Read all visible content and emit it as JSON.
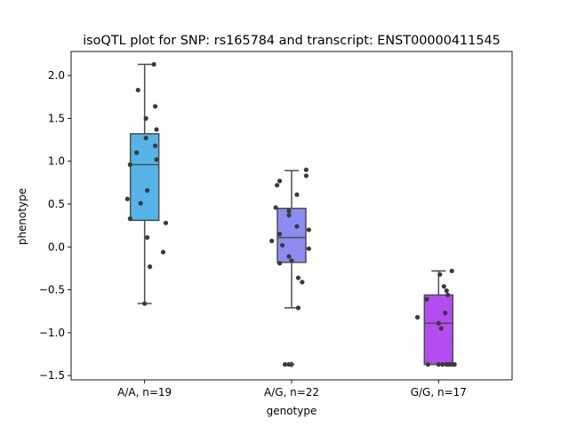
{
  "chart_data": {
    "type": "box",
    "title": "isoQTL plot for SNP: rs165784 and transcript: ENST00000411545",
    "xlabel": "genotype",
    "ylabel": "phenotype",
    "ylim": [
      -1.55,
      2.28
    ],
    "yticks": [
      -1.5,
      -1.0,
      -0.5,
      0.0,
      0.5,
      1.0,
      1.5,
      2.0
    ],
    "ytick_labels": [
      "−1.5",
      "−1.0",
      "−0.5",
      "0.0",
      "0.5",
      "1.0",
      "1.5",
      "2.0"
    ],
    "grid": false,
    "legend": "none",
    "categories": [
      "A/A, n=19",
      "A/G, n=22",
      "G/G, n=17"
    ],
    "boxes": [
      {
        "category": "A/A, n=19",
        "color": "#56b4e9",
        "q1": 0.31,
        "median": 0.96,
        "q3": 1.32,
        "whisker_low": -0.66,
        "whisker_high": 2.13,
        "outliers": []
      },
      {
        "category": "A/G, n=22",
        "color": "#8c8cf0",
        "q1": -0.18,
        "median": 0.11,
        "q3": 0.45,
        "whisker_low": -0.71,
        "whisker_high": 0.89,
        "outliers": [
          -1.37
        ]
      },
      {
        "category": "G/G, n=17",
        "color": "#b34df0",
        "q1": -1.37,
        "median": -0.89,
        "q3": -0.56,
        "whisker_low": -1.37,
        "whisker_high": -0.28,
        "outliers": []
      }
    ],
    "points": [
      {
        "group": 0,
        "x": 0.07,
        "y": 2.13
      },
      {
        "group": 0,
        "x": -0.05,
        "y": 1.83
      },
      {
        "group": 0,
        "x": 0.08,
        "y": 1.64
      },
      {
        "group": 0,
        "x": 0.01,
        "y": 1.5
      },
      {
        "group": 0,
        "x": 0.09,
        "y": 1.37
      },
      {
        "group": 0,
        "x": 0.01,
        "y": 1.27
      },
      {
        "group": 0,
        "x": 0.08,
        "y": 1.18
      },
      {
        "group": 0,
        "x": -0.06,
        "y": 1.1
      },
      {
        "group": 0,
        "x": 0.09,
        "y": 1.02
      },
      {
        "group": 0,
        "x": -0.11,
        "y": 0.96
      },
      {
        "group": 0,
        "x": 0.02,
        "y": 0.66
      },
      {
        "group": 0,
        "x": -0.13,
        "y": 0.56
      },
      {
        "group": 0,
        "x": -0.03,
        "y": 0.51
      },
      {
        "group": 0,
        "x": -0.11,
        "y": 0.33
      },
      {
        "group": 0,
        "x": 0.16,
        "y": 0.28
      },
      {
        "group": 0,
        "x": 0.02,
        "y": 0.11
      },
      {
        "group": 0,
        "x": 0.14,
        "y": -0.06
      },
      {
        "group": 0,
        "x": 0.04,
        "y": -0.23
      },
      {
        "group": 0,
        "x": 0.0,
        "y": -0.66
      },
      {
        "group": 1,
        "x": 0.11,
        "y": 0.9
      },
      {
        "group": 1,
        "x": 0.11,
        "y": 0.83
      },
      {
        "group": 1,
        "x": -0.09,
        "y": 0.77
      },
      {
        "group": 1,
        "x": -0.11,
        "y": 0.72
      },
      {
        "group": 1,
        "x": 0.04,
        "y": 0.61
      },
      {
        "group": 1,
        "x": -0.12,
        "y": 0.46
      },
      {
        "group": 1,
        "x": -0.02,
        "y": 0.42
      },
      {
        "group": 1,
        "x": -0.02,
        "y": 0.37
      },
      {
        "group": 1,
        "x": 0.04,
        "y": 0.24
      },
      {
        "group": 1,
        "x": 0.13,
        "y": 0.2
      },
      {
        "group": 1,
        "x": -0.09,
        "y": 0.15
      },
      {
        "group": 1,
        "x": -0.15,
        "y": 0.07
      },
      {
        "group": 1,
        "x": -0.07,
        "y": 0.02
      },
      {
        "group": 1,
        "x": 0.13,
        "y": -0.02
      },
      {
        "group": 1,
        "x": -0.02,
        "y": -0.11
      },
      {
        "group": 1,
        "x": 0.0,
        "y": -0.16
      },
      {
        "group": 1,
        "x": -0.09,
        "y": -0.19
      },
      {
        "group": 1,
        "x": 0.05,
        "y": -0.36
      },
      {
        "group": 1,
        "x": 0.08,
        "y": -0.41
      },
      {
        "group": 1,
        "x": 0.05,
        "y": -0.71
      },
      {
        "group": 1,
        "x": -0.05,
        "y": -1.37
      },
      {
        "group": 1,
        "x": -0.02,
        "y": -1.37
      },
      {
        "group": 2,
        "x": 0.1,
        "y": -0.28
      },
      {
        "group": 2,
        "x": 0.01,
        "y": -0.32
      },
      {
        "group": 2,
        "x": 0.04,
        "y": -0.46
      },
      {
        "group": 2,
        "x": 0.06,
        "y": -0.51
      },
      {
        "group": 2,
        "x": 0.07,
        "y": -0.56
      },
      {
        "group": 2,
        "x": -0.09,
        "y": -0.61
      },
      {
        "group": 2,
        "x": 0.05,
        "y": -0.77
      },
      {
        "group": 2,
        "x": -0.16,
        "y": -0.82
      },
      {
        "group": 2,
        "x": 0.0,
        "y": -0.89
      },
      {
        "group": 2,
        "x": 0.02,
        "y": -0.95
      },
      {
        "group": 2,
        "x": -0.08,
        "y": -1.37
      },
      {
        "group": 2,
        "x": 0.0,
        "y": -1.37
      },
      {
        "group": 2,
        "x": 0.03,
        "y": -1.37
      },
      {
        "group": 2,
        "x": 0.06,
        "y": -1.37
      },
      {
        "group": 2,
        "x": 0.08,
        "y": -1.37
      },
      {
        "group": 2,
        "x": 0.1,
        "y": -1.37
      },
      {
        "group": 2,
        "x": 0.12,
        "y": -1.37
      }
    ],
    "point_color": "#3a3a3a",
    "box_edge_color": "#4d4d4d"
  }
}
